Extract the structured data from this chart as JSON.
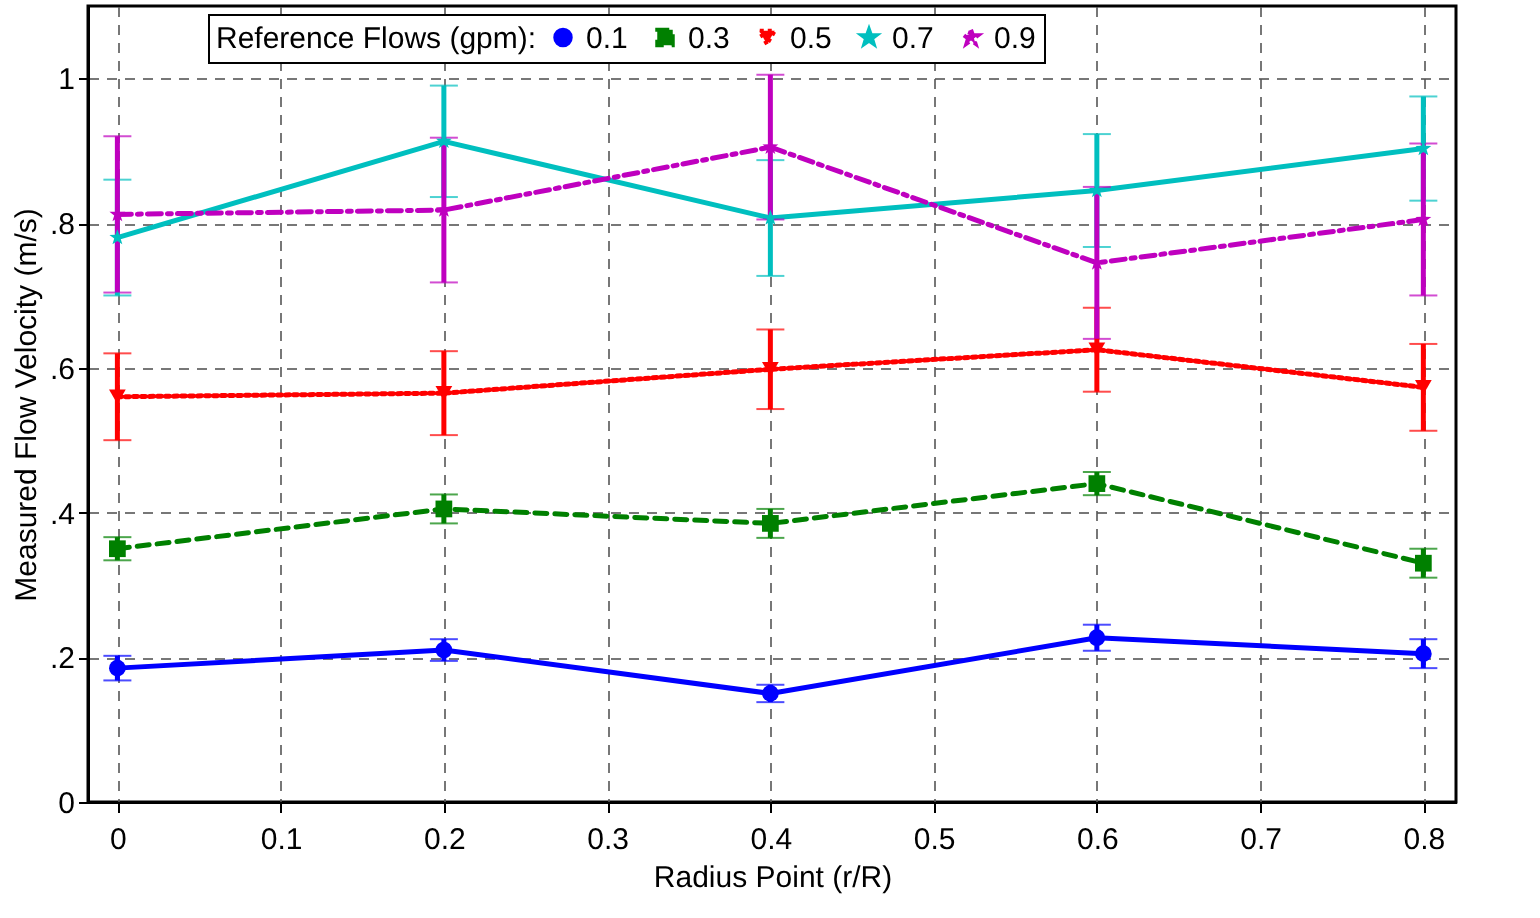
{
  "chart_data": {
    "type": "line",
    "xlabel": "Radius Point (r/R)",
    "ylabel": "Measured Flow Velocity (m/s)",
    "legend_title": "Reference Flows (gpm):",
    "x": [
      0,
      0.2,
      0.4,
      0.6,
      0.8
    ],
    "series": [
      {
        "name": "0.1",
        "color": "#0000ff",
        "marker": "circle",
        "line_style": "solid",
        "values": [
          0.185,
          0.21,
          0.15,
          0.227,
          0.205
        ],
        "errors": [
          0.017,
          0.015,
          0.012,
          0.018,
          0.02
        ]
      },
      {
        "name": "0.3",
        "color": "#008000",
        "marker": "square",
        "line_style": "dashed",
        "values": [
          0.35,
          0.405,
          0.385,
          0.44,
          0.33
        ],
        "errors": [
          0.016,
          0.02,
          0.02,
          0.016,
          0.02
        ]
      },
      {
        "name": "0.5",
        "color": "#ff0000",
        "marker": "triangle-down",
        "line_style": "dotted",
        "values": [
          0.56,
          0.565,
          0.598,
          0.625,
          0.573
        ],
        "errors": [
          0.06,
          0.058,
          0.055,
          0.058,
          0.06
        ]
      },
      {
        "name": "0.7",
        "color": "#00bfbf",
        "marker": "star",
        "line_style": "solid",
        "values": [
          0.78,
          0.913,
          0.807,
          0.845,
          0.903
        ],
        "errors": [
          0.08,
          0.077,
          0.08,
          0.078,
          0.072
        ]
      },
      {
        "name": "0.9",
        "color": "#bf00bf",
        "marker": "star",
        "line_style": "dashdot",
        "values": [
          0.812,
          0.818,
          0.905,
          0.745,
          0.805
        ],
        "errors": [
          0.108,
          0.1,
          0.1,
          0.105,
          0.105
        ]
      }
    ],
    "xlim": [
      -0.018,
      0.82
    ],
    "xticks": [
      0,
      0.1,
      0.2,
      0.3,
      0.4,
      0.5,
      0.6,
      0.7,
      0.8
    ],
    "ylim": [
      0,
      1.1
    ],
    "yticks": [
      {
        "value": 0,
        "label": "0"
      },
      {
        "value": 0.2,
        "label": ".2"
      },
      {
        "value": 0.4,
        "label": ".4"
      },
      {
        "value": 0.6,
        "label": ".6"
      },
      {
        "value": 0.8,
        "label": ".8"
      },
      {
        "value": 1,
        "label": "1"
      }
    ],
    "grid": true,
    "legend": "top"
  }
}
